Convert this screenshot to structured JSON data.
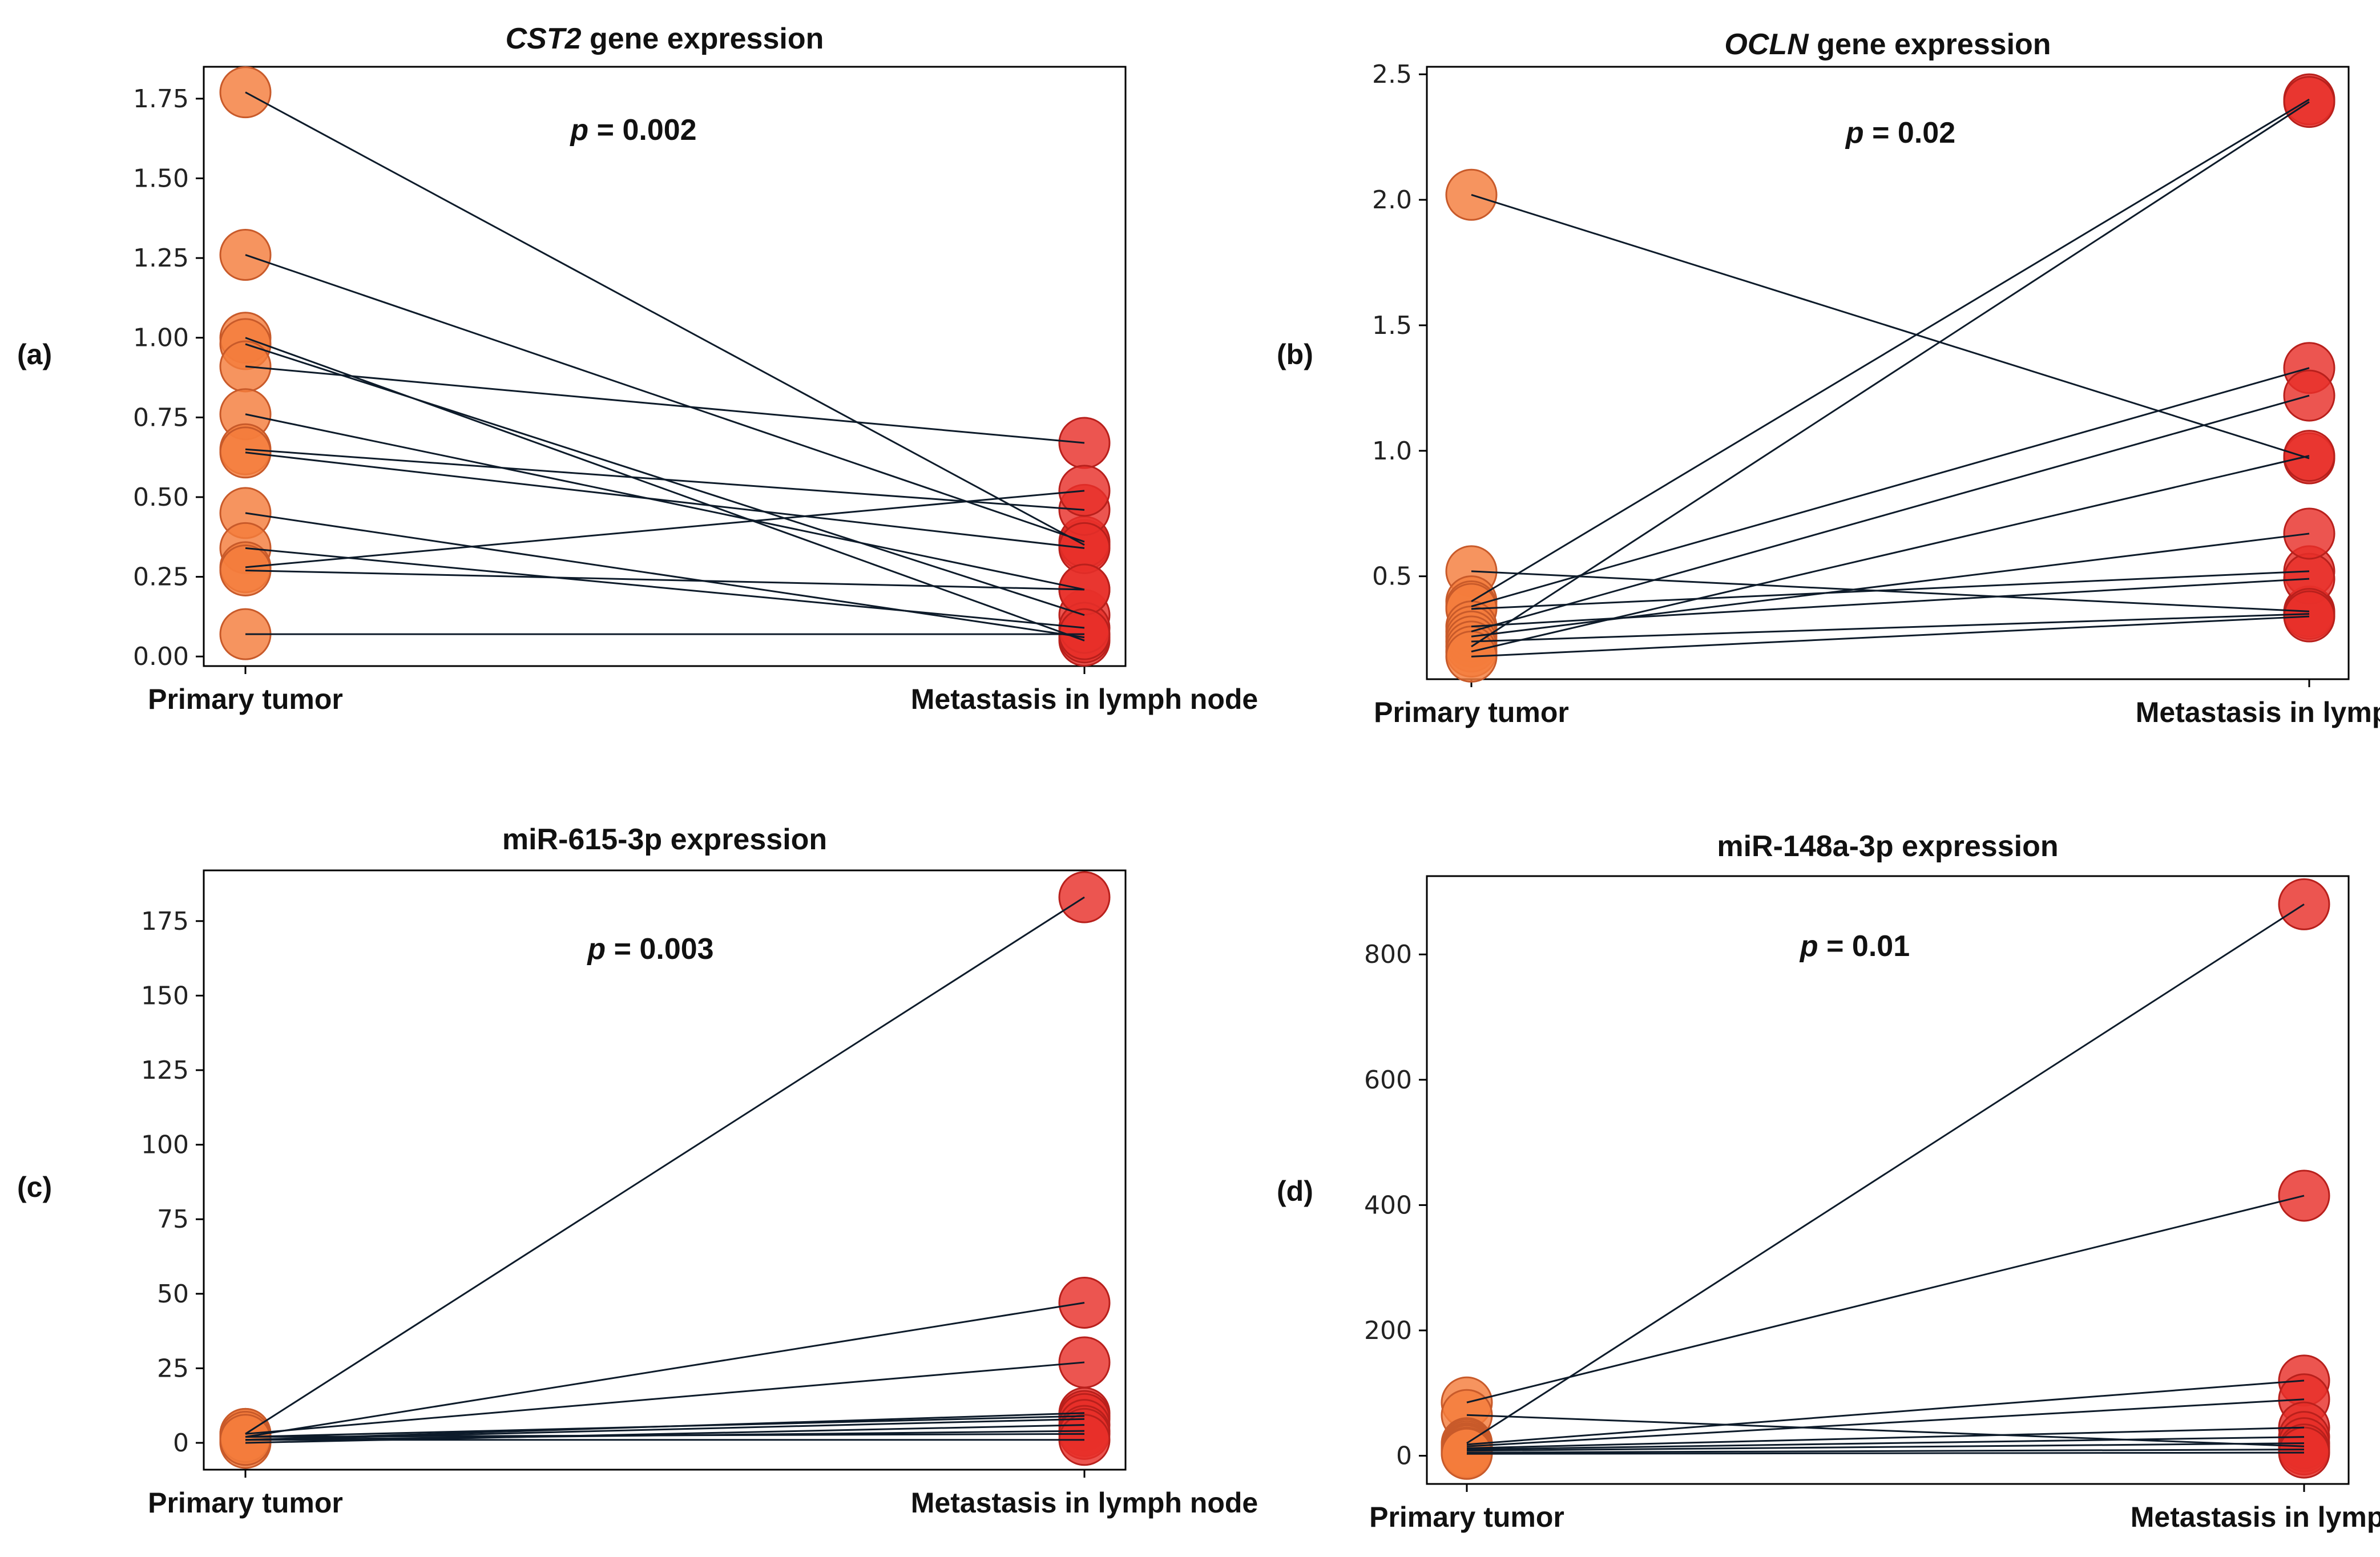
{
  "figure": {
    "x_categories": [
      "Primary tumor",
      "Metastasis in lymph node"
    ],
    "colors": {
      "primary_point": "#f47c3c",
      "metastasis_point": "#e8302a",
      "point_edge": "#c85a2a",
      "connector": "#0d1b2a",
      "axes": "#000000"
    }
  },
  "chart_data": [
    {
      "panel_label": "(a)",
      "type": "scatter",
      "title_italic": "CST2",
      "title_rest": " gene expression",
      "p_symbol": "p",
      "p_value": " = 0.002",
      "x_categories": [
        "Primary tumor",
        "Metastasis in lymph node"
      ],
      "ylim": [
        -0.03,
        1.85
      ],
      "yticks": [
        "0.00",
        "0.25",
        "0.50",
        "0.75",
        "1.00",
        "1.25",
        "1.50",
        "1.75"
      ],
      "ytick_values": [
        0.0,
        0.25,
        0.5,
        0.75,
        1.0,
        1.25,
        1.5,
        1.75
      ],
      "pairs": [
        [
          1.77,
          0.35
        ],
        [
          1.26,
          0.36
        ],
        [
          1.0,
          0.05
        ],
        [
          0.98,
          0.13
        ],
        [
          0.91,
          0.67
        ],
        [
          0.76,
          0.21
        ],
        [
          0.65,
          0.46
        ],
        [
          0.64,
          0.34
        ],
        [
          0.45,
          0.06
        ],
        [
          0.34,
          0.09
        ],
        [
          0.28,
          0.52
        ],
        [
          0.27,
          0.21
        ],
        [
          0.07,
          0.07
        ]
      ]
    },
    {
      "panel_label": "(b)",
      "type": "scatter",
      "title_italic": "OCLN",
      "title_rest": " gene expression",
      "p_symbol": "p",
      "p_value": " = 0.02",
      "x_categories": [
        "Primary tumor",
        "Metastasis in lymph node"
      ],
      "ylim": [
        0.09,
        2.53
      ],
      "yticks": [
        "0.5",
        "1.0",
        "1.5",
        "2.0",
        "2.5"
      ],
      "ytick_values": [
        0.5,
        1.0,
        1.5,
        2.0,
        2.5
      ],
      "pairs": [
        [
          2.02,
          0.97
        ],
        [
          0.52,
          0.36
        ],
        [
          0.4,
          2.4
        ],
        [
          0.38,
          1.33
        ],
        [
          0.37,
          0.52
        ],
        [
          0.3,
          0.49
        ],
        [
          0.28,
          1.22
        ],
        [
          0.26,
          0.67
        ],
        [
          0.24,
          0.35
        ],
        [
          0.22,
          2.39
        ],
        [
          0.2,
          0.98
        ],
        [
          0.18,
          0.34
        ]
      ]
    },
    {
      "panel_label": "(c)",
      "type": "scatter",
      "title_italic": "",
      "title_rest": "miR-615-3p expression",
      "p_symbol": "p",
      "p_value": " = 0.003",
      "x_categories": [
        "Primary tumor",
        "Metastasis in lymph node"
      ],
      "ylim": [
        -9,
        192
      ],
      "yticks": [
        "0",
        "25",
        "50",
        "75",
        "100",
        "125",
        "150",
        "175"
      ],
      "ytick_values": [
        0,
        25,
        50,
        75,
        100,
        125,
        150,
        175
      ],
      "pairs": [
        [
          3,
          183
        ],
        [
          2,
          47
        ],
        [
          3,
          27
        ],
        [
          1,
          10
        ],
        [
          2,
          9
        ],
        [
          1,
          8
        ],
        [
          0,
          6
        ],
        [
          1,
          4
        ],
        [
          2,
          3
        ],
        [
          1,
          1
        ]
      ]
    },
    {
      "panel_label": "(d)",
      "type": "scatter",
      "title_italic": "",
      "title_rest": "miR-148a-3p expression",
      "p_symbol": "p",
      "p_value": " = 0.01",
      "x_categories": [
        "Primary tumor",
        "Metastasis in lymph node"
      ],
      "ylim": [
        -45,
        925
      ],
      "yticks": [
        "0",
        "200",
        "400",
        "600",
        "800"
      ],
      "ytick_values": [
        0,
        200,
        400,
        600,
        800
      ],
      "pairs": [
        [
          85,
          415
        ],
        [
          65,
          15
        ],
        [
          20,
          880
        ],
        [
          18,
          120
        ],
        [
          15,
          90
        ],
        [
          12,
          45
        ],
        [
          10,
          30
        ],
        [
          8,
          20
        ],
        [
          5,
          10
        ],
        [
          3,
          5
        ]
      ]
    }
  ]
}
